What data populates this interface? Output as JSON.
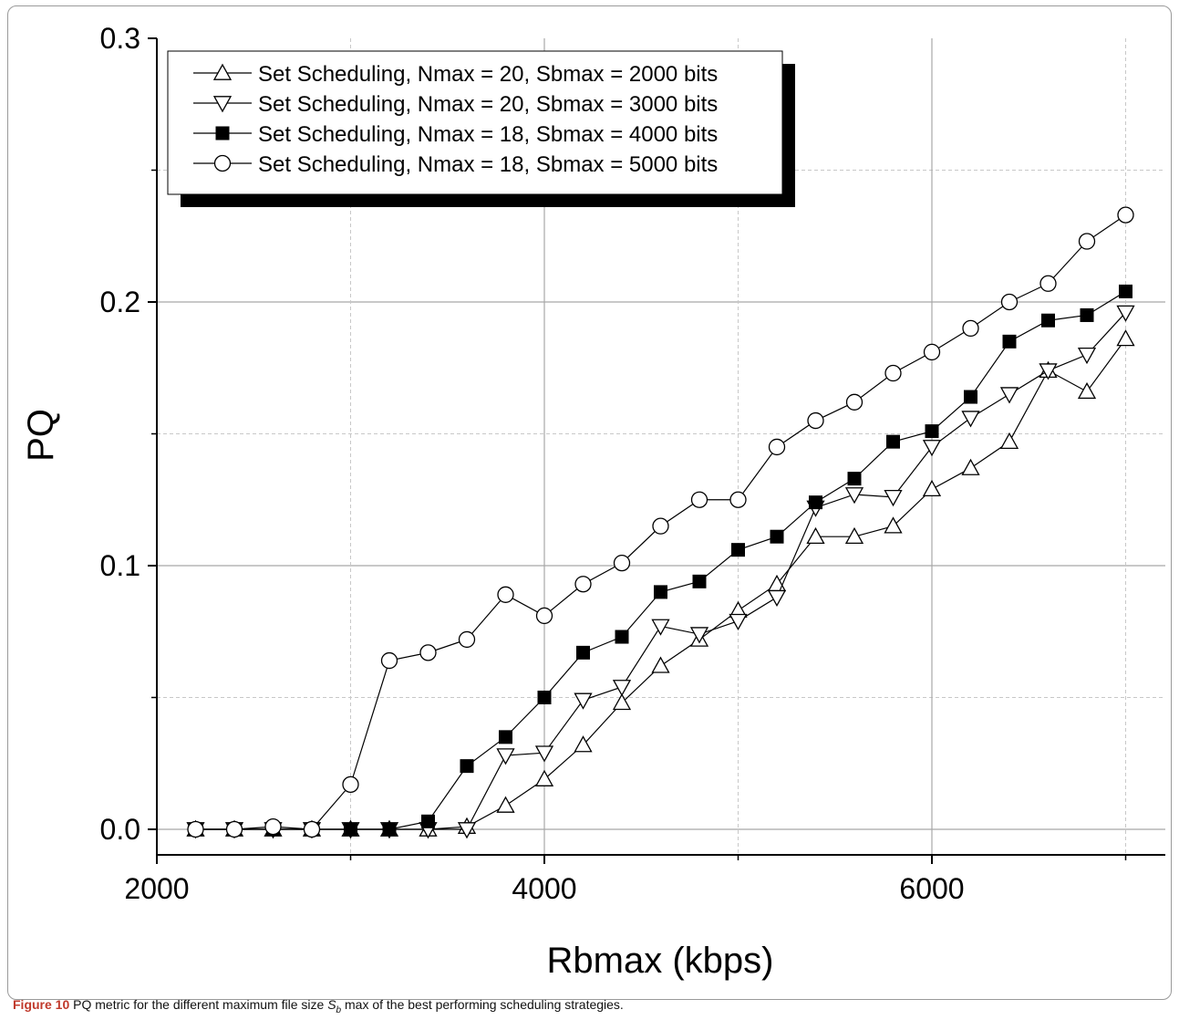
{
  "caption": {
    "label": "Figure 10",
    "text_before": " PQ metric for the different maximum file size ",
    "symbol": "S",
    "symbol_sub": "b",
    "text_after": " max of the best performing scheduling strategies."
  },
  "chart_data": {
    "type": "line",
    "title": "",
    "xlabel": "Rbmax (kbps)",
    "ylabel": "PQ",
    "xlim": [
      2000,
      7200
    ],
    "ylim": [
      0,
      0.3
    ],
    "xticks": [
      2000,
      4000,
      6000
    ],
    "xtick_labels": [
      "2000",
      "4000",
      "6000"
    ],
    "yticks": [
      0.0,
      0.1,
      0.2,
      0.3
    ],
    "ytick_labels": [
      "0.0",
      "0.1",
      "0.2",
      "0.3"
    ],
    "grid": true,
    "legend_position": "top-left",
    "x": [
      2200,
      2400,
      2600,
      2800,
      3000,
      3200,
      3400,
      3600,
      3800,
      4000,
      4200,
      4400,
      4600,
      4800,
      5000,
      5200,
      5400,
      5600,
      5800,
      6000,
      6200,
      6400,
      6600,
      6800,
      7000
    ],
    "series": [
      {
        "name": "Set Scheduling, Nmax = 20, Sbmax = 2000 bits",
        "marker": "triangle-up",
        "values": [
          0,
          0,
          0,
          0,
          0,
          0,
          0,
          0.001,
          0.009,
          0.019,
          0.032,
          0.048,
          0.062,
          0.072,
          0.083,
          0.093,
          0.111,
          0.111,
          0.115,
          0.129,
          0.137,
          0.147,
          0.174,
          0.166,
          0.186
        ]
      },
      {
        "name": "Set Scheduling, Nmax = 20, Sbmax = 3000 bits",
        "marker": "triangle-down",
        "values": [
          0,
          0,
          0,
          0,
          0,
          0,
          0,
          0,
          0.028,
          0.029,
          0.049,
          0.054,
          0.077,
          0.074,
          0.079,
          0.088,
          0.122,
          0.127,
          0.126,
          0.145,
          0.156,
          0.165,
          0.174,
          0.18,
          0.196
        ]
      },
      {
        "name": "Set Scheduling, Nmax = 18, Sbmax = 4000 bits",
        "marker": "square-filled",
        "values": [
          0,
          0,
          0,
          0,
          0,
          0,
          0.003,
          0.024,
          0.035,
          0.05,
          0.067,
          0.073,
          0.09,
          0.094,
          0.106,
          0.111,
          0.124,
          0.133,
          0.147,
          0.151,
          0.164,
          0.185,
          0.193,
          0.195,
          0.204
        ]
      },
      {
        "name": "Set Scheduling, Nmax = 18, Sbmax = 5000 bits",
        "marker": "circle-open",
        "values": [
          0,
          0,
          0.001,
          0,
          0.017,
          0.064,
          0.067,
          0.072,
          0.089,
          0.081,
          0.093,
          0.101,
          0.115,
          0.125,
          0.125,
          0.145,
          0.155,
          0.162,
          0.173,
          0.181,
          0.19,
          0.2,
          0.207,
          0.223,
          0.233
        ]
      }
    ]
  }
}
